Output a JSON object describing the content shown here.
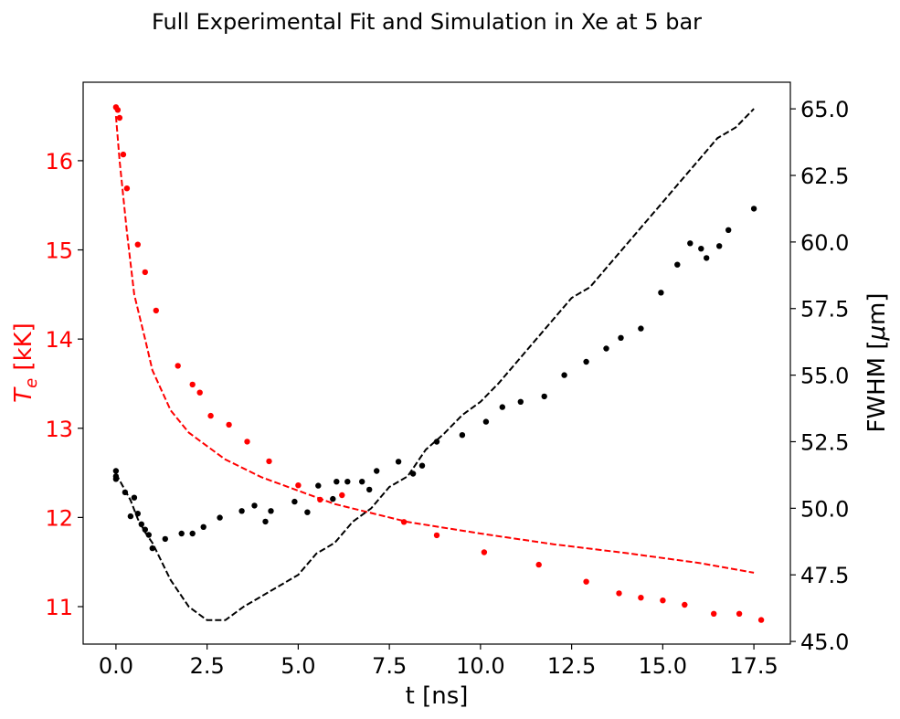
{
  "chart_data": {
    "type": "scatter",
    "title": "Full Experimental Fit and Simulation in Xe at 5 bar",
    "xlabel": "t [ns]",
    "ylabel_left_main": "T",
    "ylabel_left_sub": "e",
    "ylabel_left_rest": " [kK]",
    "ylabel_right_main": "FWHM [",
    "ylabel_right_mu": "μ",
    "ylabel_right_rest": "m]",
    "xlim": [
      -0.9,
      18.5
    ],
    "ylim_left": [
      10.58,
      16.88
    ],
    "ylim_right": [
      44.9,
      66.0
    ],
    "grid": false,
    "colors": {
      "left_series": "#ff0000",
      "right_series": "#000000"
    },
    "x_ticks": [
      "0.0",
      "2.5",
      "5.0",
      "7.5",
      "10.0",
      "12.5",
      "15.0",
      "17.5"
    ],
    "y_left_ticks": [
      "11",
      "12",
      "13",
      "14",
      "15",
      "16"
    ],
    "y_right_ticks": [
      "45.0",
      "47.5",
      "50.0",
      "52.5",
      "55.0",
      "57.5",
      "60.0",
      "62.5",
      "65.0"
    ],
    "series": [
      {
        "axis": "left",
        "style": "dashed",
        "x": [
          0.0,
          0.1,
          0.2,
          0.3,
          0.5,
          0.8,
          1.0,
          1.5,
          2.0,
          2.5,
          3.0,
          4.0,
          5.0,
          6.0,
          7.0,
          8.0,
          10.0,
          12.0,
          14.0,
          16.0,
          17.5
        ],
        "y": [
          16.5,
          16.0,
          15.6,
          15.2,
          14.5,
          14.0,
          13.65,
          13.2,
          12.95,
          12.8,
          12.65,
          12.45,
          12.3,
          12.15,
          12.05,
          11.95,
          11.82,
          11.7,
          11.6,
          11.49,
          11.38
        ]
      },
      {
        "axis": "left",
        "style": "markers",
        "x": [
          0.0,
          0.05,
          0.1,
          0.2,
          0.3,
          0.6,
          0.8,
          1.1,
          1.7,
          2.1,
          2.3,
          2.6,
          3.1,
          3.6,
          4.2,
          5.0,
          5.6,
          6.2,
          7.9,
          8.8,
          10.1,
          11.6,
          12.9,
          13.8,
          14.4,
          15.0,
          15.6,
          16.4,
          17.1,
          17.7
        ],
        "y": [
          16.6,
          16.57,
          16.48,
          16.07,
          15.69,
          15.06,
          14.75,
          14.32,
          13.7,
          13.49,
          13.4,
          13.14,
          13.04,
          12.85,
          12.63,
          12.36,
          12.2,
          12.25,
          11.95,
          11.8,
          11.61,
          11.47,
          11.28,
          11.15,
          11.1,
          11.07,
          11.02,
          10.92,
          10.92,
          10.85
        ]
      },
      {
        "axis": "right",
        "style": "dashed",
        "x": [
          0.0,
          0.4,
          0.6,
          0.8,
          1.0,
          1.5,
          2.0,
          2.5,
          3.0,
          3.5,
          4.0,
          4.5,
          5.0,
          5.5,
          6.0,
          6.5,
          7.0,
          7.5,
          8.0,
          8.5,
          9.0,
          9.5,
          10.0,
          10.5,
          11.0,
          11.5,
          12.0,
          12.5,
          13.0,
          13.5,
          14.0,
          14.5,
          15.0,
          15.5,
          16.0,
          16.5,
          17.0,
          17.5
        ],
        "y": [
          51.3,
          50.3,
          49.6,
          49.1,
          48.7,
          47.3,
          46.3,
          45.8,
          45.8,
          46.3,
          46.7,
          47.1,
          47.5,
          48.3,
          48.7,
          49.5,
          50.0,
          50.8,
          51.2,
          52.2,
          52.8,
          53.5,
          54.0,
          54.7,
          55.5,
          56.3,
          57.1,
          57.9,
          58.3,
          59.1,
          59.9,
          60.7,
          61.5,
          62.3,
          63.1,
          63.9,
          64.3,
          65.0
        ]
      },
      {
        "axis": "right",
        "style": "markers",
        "x": [
          0.0,
          0.0,
          0.0,
          0.25,
          0.4,
          0.5,
          0.6,
          0.7,
          0.8,
          0.9,
          1.0,
          1.35,
          1.8,
          2.1,
          2.4,
          2.85,
          3.45,
          3.8,
          4.1,
          4.25,
          4.9,
          5.25,
          5.55,
          5.95,
          6.05,
          6.35,
          6.75,
          6.95,
          7.15,
          7.75,
          8.15,
          8.4,
          8.8,
          9.5,
          10.15,
          10.6,
          11.1,
          11.75,
          12.3,
          12.9,
          13.45,
          13.85,
          14.4,
          14.95,
          15.4,
          15.75,
          16.05,
          16.2,
          16.55,
          16.8,
          17.5
        ],
        "y": [
          51.4,
          51.1,
          51.2,
          50.6,
          49.7,
          50.4,
          49.8,
          49.4,
          49.2,
          49.0,
          48.5,
          48.85,
          49.05,
          49.05,
          49.3,
          49.65,
          49.9,
          50.1,
          49.5,
          49.9,
          50.25,
          49.85,
          50.85,
          50.35,
          51.0,
          51.0,
          51.0,
          50.7,
          51.4,
          51.75,
          51.3,
          51.6,
          52.5,
          52.75,
          53.25,
          53.8,
          54.0,
          54.2,
          55.0,
          55.5,
          56.0,
          56.4,
          56.75,
          58.1,
          59.15,
          59.95,
          59.75,
          59.4,
          59.85,
          60.45,
          61.25
        ]
      }
    ]
  }
}
